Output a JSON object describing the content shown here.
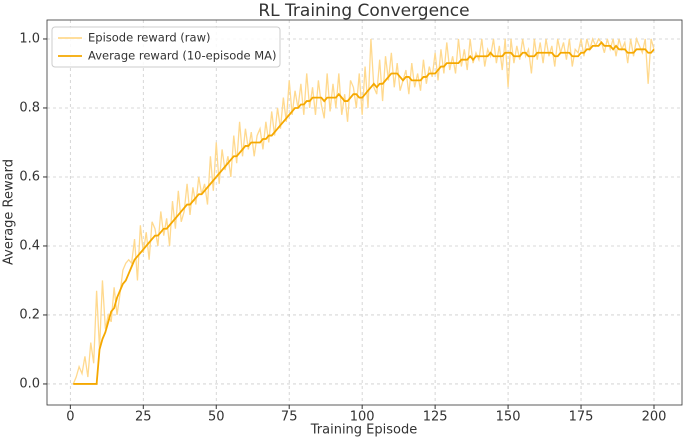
{
  "chart_data": {
    "type": "line",
    "title": "RL Training Convergence",
    "x_label": "Training Episode",
    "y_label": "Average Reward",
    "x": [
      1,
      2,
      3,
      4,
      5,
      6,
      7,
      8,
      9,
      10,
      11,
      12,
      13,
      14,
      15,
      16,
      17,
      18,
      19,
      20,
      21,
      22,
      23,
      24,
      25,
      26,
      27,
      28,
      29,
      30,
      31,
      32,
      33,
      34,
      35,
      36,
      37,
      38,
      39,
      40,
      41,
      42,
      43,
      44,
      45,
      46,
      47,
      48,
      49,
      50,
      51,
      52,
      53,
      54,
      55,
      56,
      57,
      58,
      59,
      60,
      61,
      62,
      63,
      64,
      65,
      66,
      67,
      68,
      69,
      70,
      71,
      72,
      73,
      74,
      75,
      76,
      77,
      78,
      79,
      80,
      81,
      82,
      83,
      84,
      85,
      86,
      87,
      88,
      89,
      90,
      91,
      92,
      93,
      94,
      95,
      96,
      97,
      98,
      99,
      100,
      101,
      102,
      103,
      104,
      105,
      106,
      107,
      108,
      109,
      110,
      111,
      112,
      113,
      114,
      115,
      116,
      117,
      118,
      119,
      120,
      121,
      122,
      123,
      124,
      125,
      126,
      127,
      128,
      129,
      130,
      131,
      132,
      133,
      134,
      135,
      136,
      137,
      138,
      139,
      140,
      141,
      142,
      143,
      144,
      145,
      146,
      147,
      148,
      149,
      150,
      151,
      152,
      153,
      154,
      155,
      156,
      157,
      158,
      159,
      160,
      161,
      162,
      163,
      164,
      165,
      166,
      167,
      168,
      169,
      170,
      171,
      172,
      173,
      174,
      175,
      176,
      177,
      178,
      179,
      180,
      181,
      182,
      183,
      184,
      185,
      186,
      187,
      188,
      189,
      190,
      191,
      192,
      193,
      194,
      195,
      196,
      197,
      198,
      199,
      200
    ],
    "series": [
      {
        "name": "Episode reward (raw)",
        "color": "#ffd98e",
        "values": [
          0,
          0.02,
          0.05,
          0.03,
          0.08,
          0.02,
          0.12,
          0.06,
          0.27,
          0.1,
          0.3,
          0.16,
          0.2,
          0.18,
          0.28,
          0.2,
          0.26,
          0.33,
          0.35,
          0.36,
          0.35,
          0.42,
          0.3,
          0.46,
          0.38,
          0.44,
          0.36,
          0.47,
          0.45,
          0.4,
          0.5,
          0.43,
          0.48,
          0.4,
          0.53,
          0.45,
          0.56,
          0.47,
          0.5,
          0.58,
          0.49,
          0.57,
          0.52,
          0.6,
          0.55,
          0.58,
          0.52,
          0.66,
          0.56,
          0.7,
          0.58,
          0.68,
          0.62,
          0.66,
          0.6,
          0.72,
          0.64,
          0.76,
          0.66,
          0.74,
          0.68,
          0.73,
          0.66,
          0.72,
          0.74,
          0.68,
          0.76,
          0.7,
          0.79,
          0.72,
          0.8,
          0.74,
          0.83,
          0.76,
          0.88,
          0.78,
          0.85,
          0.8,
          0.87,
          0.78,
          0.9,
          0.8,
          0.86,
          0.78,
          0.88,
          0.81,
          0.77,
          0.9,
          0.79,
          0.87,
          0.8,
          0.9,
          0.78,
          0.84,
          0.76,
          0.88,
          0.86,
          0.8,
          0.9,
          0.78,
          0.92,
          0.8,
          1.0,
          0.86,
          0.84,
          0.94,
          0.82,
          0.95,
          0.88,
          0.96,
          0.86,
          0.93,
          0.85,
          0.88,
          0.91,
          0.84,
          0.93,
          0.86,
          0.9,
          0.85,
          0.94,
          0.87,
          0.92,
          0.89,
          0.96,
          0.88,
          0.97,
          0.9,
          0.99,
          0.91,
          0.95,
          0.9,
          1.0,
          0.92,
          0.97,
          0.91,
          1.0,
          0.93,
          0.96,
          0.94,
          1.0,
          0.92,
          0.97,
          0.95,
          1.0,
          0.93,
          0.98,
          0.91,
          1.0,
          0.86,
          1.0,
          0.93,
          0.98,
          0.94,
          1.0,
          0.95,
          0.97,
          0.9,
          1.0,
          0.94,
          0.99,
          0.93,
          1.0,
          0.95,
          0.98,
          0.92,
          1.0,
          0.96,
          0.99,
          0.94,
          1.0,
          0.92,
          0.97,
          0.96,
          1.0,
          0.95,
          1.0,
          0.97,
          1.0,
          0.98,
          1.0,
          0.99,
          0.96,
          1.0,
          0.97,
          1.0,
          0.95,
          1.0,
          0.97,
          0.99,
          0.93,
          1.0,
          0.95,
          1.0,
          0.98,
          0.96,
          1.0,
          0.87,
          1.0,
          0.97
        ]
      },
      {
        "name": "Average reward (10-episode MA)",
        "color": "#f5a800",
        "values": [
          0,
          0,
          0,
          0,
          0,
          0,
          0,
          0,
          0,
          0.1,
          0.13,
          0.15,
          0.18,
          0.21,
          0.22,
          0.25,
          0.27,
          0.29,
          0.3,
          0.32,
          0.34,
          0.36,
          0.37,
          0.38,
          0.39,
          0.4,
          0.41,
          0.42,
          0.43,
          0.43,
          0.44,
          0.45,
          0.45,
          0.46,
          0.47,
          0.48,
          0.49,
          0.5,
          0.51,
          0.52,
          0.52,
          0.53,
          0.54,
          0.55,
          0.55,
          0.56,
          0.57,
          0.58,
          0.59,
          0.6,
          0.61,
          0.62,
          0.63,
          0.64,
          0.65,
          0.66,
          0.66,
          0.67,
          0.68,
          0.69,
          0.69,
          0.7,
          0.7,
          0.7,
          0.7,
          0.71,
          0.71,
          0.72,
          0.72,
          0.73,
          0.74,
          0.75,
          0.76,
          0.77,
          0.78,
          0.79,
          0.8,
          0.8,
          0.81,
          0.81,
          0.82,
          0.82,
          0.83,
          0.83,
          0.83,
          0.83,
          0.82,
          0.83,
          0.83,
          0.83,
          0.83,
          0.84,
          0.83,
          0.82,
          0.82,
          0.83,
          0.84,
          0.84,
          0.83,
          0.83,
          0.84,
          0.85,
          0.86,
          0.87,
          0.86,
          0.87,
          0.87,
          0.88,
          0.89,
          0.9,
          0.9,
          0.9,
          0.89,
          0.88,
          0.89,
          0.89,
          0.88,
          0.88,
          0.88,
          0.88,
          0.89,
          0.89,
          0.9,
          0.9,
          0.9,
          0.91,
          0.92,
          0.92,
          0.93,
          0.93,
          0.93,
          0.93,
          0.93,
          0.94,
          0.94,
          0.94,
          0.95,
          0.94,
          0.95,
          0.95,
          0.95,
          0.95,
          0.95,
          0.96,
          0.95,
          0.95,
          0.95,
          0.95,
          0.96,
          0.96,
          0.96,
          0.95,
          0.95,
          0.95,
          0.96,
          0.96,
          0.95,
          0.95,
          0.95,
          0.96,
          0.96,
          0.96,
          0.96,
          0.96,
          0.96,
          0.95,
          0.95,
          0.96,
          0.96,
          0.96,
          0.96,
          0.95,
          0.95,
          0.95,
          0.96,
          0.96,
          0.97,
          0.97,
          0.98,
          0.98,
          0.98,
          0.99,
          0.98,
          0.98,
          0.98,
          0.97,
          0.98,
          0.97,
          0.97,
          0.97,
          0.96,
          0.96,
          0.96,
          0.97,
          0.97,
          0.97,
          0.97,
          0.96,
          0.96,
          0.97
        ]
      }
    ],
    "xlim": [
      -8,
      209.6
    ],
    "xticks": [
      0,
      25,
      50,
      75,
      100,
      125,
      150,
      175,
      200
    ],
    "ylim": [
      -0.061,
      1.055
    ],
    "yticks": [
      {
        "value": 0,
        "label": "0.0"
      },
      {
        "value": 0.2,
        "label": "0.2"
      },
      {
        "value": 0.4,
        "label": "0.4"
      },
      {
        "value": 0.6,
        "label": "0.6"
      },
      {
        "value": 0.8,
        "label": "0.8"
      },
      {
        "value": 1,
        "label": "1.0"
      }
    ],
    "grid": true,
    "legend": "upper-left"
  }
}
